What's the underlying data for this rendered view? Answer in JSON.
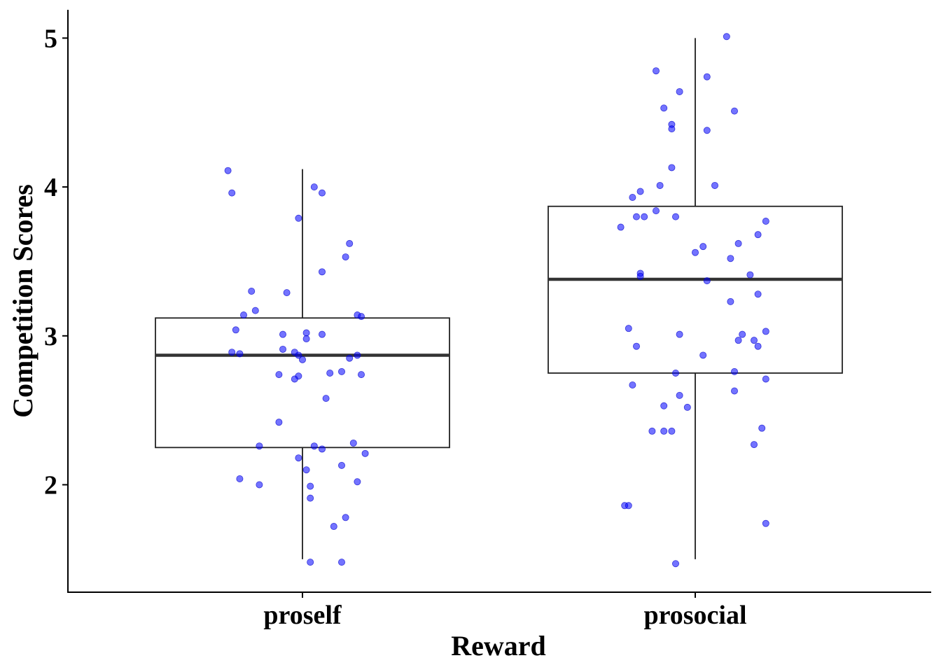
{
  "chart_data": {
    "type": "box",
    "xlabel": "Reward",
    "ylabel": "Competition Scores",
    "categories": [
      "proself",
      "prosocial"
    ],
    "ylim": [
      1.28,
      5.18
    ],
    "yticks": [
      2,
      3,
      4,
      5
    ],
    "grid": false,
    "legend": "none",
    "point_color": "#0000ff",
    "boxes": [
      {
        "category": "proself",
        "q1": 2.25,
        "median": 2.87,
        "q3": 3.12,
        "whisker_low": 1.5,
        "whisker_high": 4.12
      },
      {
        "category": "prosocial",
        "q1": 2.75,
        "median": 3.38,
        "q3": 3.87,
        "whisker_low": 1.5,
        "whisker_high": 5.0
      }
    ],
    "points": [
      {
        "category": "proself",
        "jitter": -0.19,
        "y": 4.11
      },
      {
        "category": "proself",
        "jitter": -0.18,
        "y": 3.96
      },
      {
        "category": "proself",
        "jitter": 0.03,
        "y": 4.0
      },
      {
        "category": "proself",
        "jitter": 0.05,
        "y": 3.96
      },
      {
        "category": "proself",
        "jitter": -0.01,
        "y": 3.79
      },
      {
        "category": "proself",
        "jitter": 0.12,
        "y": 3.62
      },
      {
        "category": "proself",
        "jitter": 0.11,
        "y": 3.53
      },
      {
        "category": "proself",
        "jitter": 0.05,
        "y": 3.43
      },
      {
        "category": "proself",
        "jitter": -0.13,
        "y": 3.3
      },
      {
        "category": "proself",
        "jitter": -0.04,
        "y": 3.29
      },
      {
        "category": "proself",
        "jitter": -0.12,
        "y": 3.17
      },
      {
        "category": "proself",
        "jitter": -0.15,
        "y": 3.14
      },
      {
        "category": "proself",
        "jitter": 0.14,
        "y": 3.14
      },
      {
        "category": "proself",
        "jitter": 0.15,
        "y": 3.13
      },
      {
        "category": "proself",
        "jitter": -0.17,
        "y": 3.04
      },
      {
        "category": "proself",
        "jitter": -0.05,
        "y": 3.01
      },
      {
        "category": "proself",
        "jitter": 0.01,
        "y": 3.02
      },
      {
        "category": "proself",
        "jitter": 0.05,
        "y": 3.01
      },
      {
        "category": "proself",
        "jitter": 0.01,
        "y": 2.98
      },
      {
        "category": "proself",
        "jitter": -0.05,
        "y": 2.91
      },
      {
        "category": "proself",
        "jitter": -0.18,
        "y": 2.89
      },
      {
        "category": "proself",
        "jitter": -0.16,
        "y": 2.88
      },
      {
        "category": "proself",
        "jitter": -0.02,
        "y": 2.89
      },
      {
        "category": "proself",
        "jitter": -0.01,
        "y": 2.87
      },
      {
        "category": "proself",
        "jitter": 0.0,
        "y": 2.84
      },
      {
        "category": "proself",
        "jitter": 0.12,
        "y": 2.85
      },
      {
        "category": "proself",
        "jitter": 0.14,
        "y": 2.87
      },
      {
        "category": "proself",
        "jitter": -0.06,
        "y": 2.74
      },
      {
        "category": "proself",
        "jitter": -0.01,
        "y": 2.73
      },
      {
        "category": "proself",
        "jitter": -0.02,
        "y": 2.71
      },
      {
        "category": "proself",
        "jitter": 0.07,
        "y": 2.75
      },
      {
        "category": "proself",
        "jitter": 0.1,
        "y": 2.76
      },
      {
        "category": "proself",
        "jitter": 0.15,
        "y": 2.74
      },
      {
        "category": "proself",
        "jitter": 0.06,
        "y": 2.58
      },
      {
        "category": "proself",
        "jitter": -0.06,
        "y": 2.42
      },
      {
        "category": "proself",
        "jitter": 0.13,
        "y": 2.28
      },
      {
        "category": "proself",
        "jitter": -0.11,
        "y": 2.26
      },
      {
        "category": "proself",
        "jitter": 0.03,
        "y": 2.26
      },
      {
        "category": "proself",
        "jitter": 0.05,
        "y": 2.24
      },
      {
        "category": "proself",
        "jitter": 0.16,
        "y": 2.21
      },
      {
        "category": "proself",
        "jitter": -0.01,
        "y": 2.18
      },
      {
        "category": "proself",
        "jitter": 0.1,
        "y": 2.13
      },
      {
        "category": "proself",
        "jitter": 0.01,
        "y": 2.1
      },
      {
        "category": "proself",
        "jitter": -0.16,
        "y": 2.04
      },
      {
        "category": "proself",
        "jitter": 0.14,
        "y": 2.02
      },
      {
        "category": "proself",
        "jitter": -0.11,
        "y": 2.0
      },
      {
        "category": "proself",
        "jitter": 0.02,
        "y": 1.99
      },
      {
        "category": "proself",
        "jitter": 0.02,
        "y": 1.91
      },
      {
        "category": "proself",
        "jitter": 0.11,
        "y": 1.78
      },
      {
        "category": "proself",
        "jitter": 0.08,
        "y": 1.72
      },
      {
        "category": "proself",
        "jitter": 0.02,
        "y": 1.48
      },
      {
        "category": "proself",
        "jitter": 0.1,
        "y": 1.48
      },
      {
        "category": "prosocial",
        "jitter": 0.08,
        "y": 5.01
      },
      {
        "category": "prosocial",
        "jitter": -0.1,
        "y": 4.78
      },
      {
        "category": "prosocial",
        "jitter": 0.03,
        "y": 4.74
      },
      {
        "category": "prosocial",
        "jitter": -0.04,
        "y": 4.64
      },
      {
        "category": "prosocial",
        "jitter": -0.08,
        "y": 4.53
      },
      {
        "category": "prosocial",
        "jitter": 0.1,
        "y": 4.51
      },
      {
        "category": "prosocial",
        "jitter": -0.06,
        "y": 4.42
      },
      {
        "category": "prosocial",
        "jitter": -0.06,
        "y": 4.39
      },
      {
        "category": "prosocial",
        "jitter": 0.03,
        "y": 4.38
      },
      {
        "category": "prosocial",
        "jitter": -0.06,
        "y": 4.13
      },
      {
        "category": "prosocial",
        "jitter": -0.09,
        "y": 4.01
      },
      {
        "category": "prosocial",
        "jitter": 0.05,
        "y": 4.01
      },
      {
        "category": "prosocial",
        "jitter": -0.14,
        "y": 3.97
      },
      {
        "category": "prosocial",
        "jitter": -0.16,
        "y": 3.93
      },
      {
        "category": "prosocial",
        "jitter": -0.1,
        "y": 3.84
      },
      {
        "category": "prosocial",
        "jitter": -0.15,
        "y": 3.8
      },
      {
        "category": "prosocial",
        "jitter": -0.13,
        "y": 3.8
      },
      {
        "category": "prosocial",
        "jitter": -0.05,
        "y": 3.8
      },
      {
        "category": "prosocial",
        "jitter": 0.18,
        "y": 3.77
      },
      {
        "category": "prosocial",
        "jitter": -0.19,
        "y": 3.73
      },
      {
        "category": "prosocial",
        "jitter": 0.16,
        "y": 3.68
      },
      {
        "category": "prosocial",
        "jitter": 0.11,
        "y": 3.62
      },
      {
        "category": "prosocial",
        "jitter": 0.02,
        "y": 3.6
      },
      {
        "category": "prosocial",
        "jitter": 0.0,
        "y": 3.56
      },
      {
        "category": "prosocial",
        "jitter": 0.09,
        "y": 3.52
      },
      {
        "category": "prosocial",
        "jitter": -0.14,
        "y": 3.42
      },
      {
        "category": "prosocial",
        "jitter": -0.14,
        "y": 3.4
      },
      {
        "category": "prosocial",
        "jitter": 0.14,
        "y": 3.41
      },
      {
        "category": "prosocial",
        "jitter": 0.03,
        "y": 3.37
      },
      {
        "category": "prosocial",
        "jitter": 0.16,
        "y": 3.28
      },
      {
        "category": "prosocial",
        "jitter": 0.09,
        "y": 3.23
      },
      {
        "category": "prosocial",
        "jitter": -0.17,
        "y": 3.05
      },
      {
        "category": "prosocial",
        "jitter": 0.18,
        "y": 3.03
      },
      {
        "category": "prosocial",
        "jitter": -0.04,
        "y": 3.01
      },
      {
        "category": "prosocial",
        "jitter": 0.12,
        "y": 3.01
      },
      {
        "category": "prosocial",
        "jitter": 0.11,
        "y": 2.97
      },
      {
        "category": "prosocial",
        "jitter": 0.15,
        "y": 2.97
      },
      {
        "category": "prosocial",
        "jitter": -0.15,
        "y": 2.93
      },
      {
        "category": "prosocial",
        "jitter": 0.16,
        "y": 2.93
      },
      {
        "category": "prosocial",
        "jitter": 0.02,
        "y": 2.87
      },
      {
        "category": "prosocial",
        "jitter": 0.1,
        "y": 2.76
      },
      {
        "category": "prosocial",
        "jitter": -0.05,
        "y": 2.75
      },
      {
        "category": "prosocial",
        "jitter": 0.18,
        "y": 2.71
      },
      {
        "category": "prosocial",
        "jitter": -0.16,
        "y": 2.67
      },
      {
        "category": "prosocial",
        "jitter": 0.1,
        "y": 2.63
      },
      {
        "category": "prosocial",
        "jitter": -0.04,
        "y": 2.6
      },
      {
        "category": "prosocial",
        "jitter": -0.08,
        "y": 2.53
      },
      {
        "category": "prosocial",
        "jitter": -0.02,
        "y": 2.52
      },
      {
        "category": "prosocial",
        "jitter": 0.17,
        "y": 2.38
      },
      {
        "category": "prosocial",
        "jitter": -0.11,
        "y": 2.36
      },
      {
        "category": "prosocial",
        "jitter": -0.08,
        "y": 2.36
      },
      {
        "category": "prosocial",
        "jitter": -0.06,
        "y": 2.36
      },
      {
        "category": "prosocial",
        "jitter": 0.15,
        "y": 2.27
      },
      {
        "category": "prosocial",
        "jitter": -0.18,
        "y": 1.86
      },
      {
        "category": "prosocial",
        "jitter": -0.17,
        "y": 1.86
      },
      {
        "category": "prosocial",
        "jitter": 0.18,
        "y": 1.74
      },
      {
        "category": "prosocial",
        "jitter": -0.05,
        "y": 1.47
      }
    ]
  }
}
